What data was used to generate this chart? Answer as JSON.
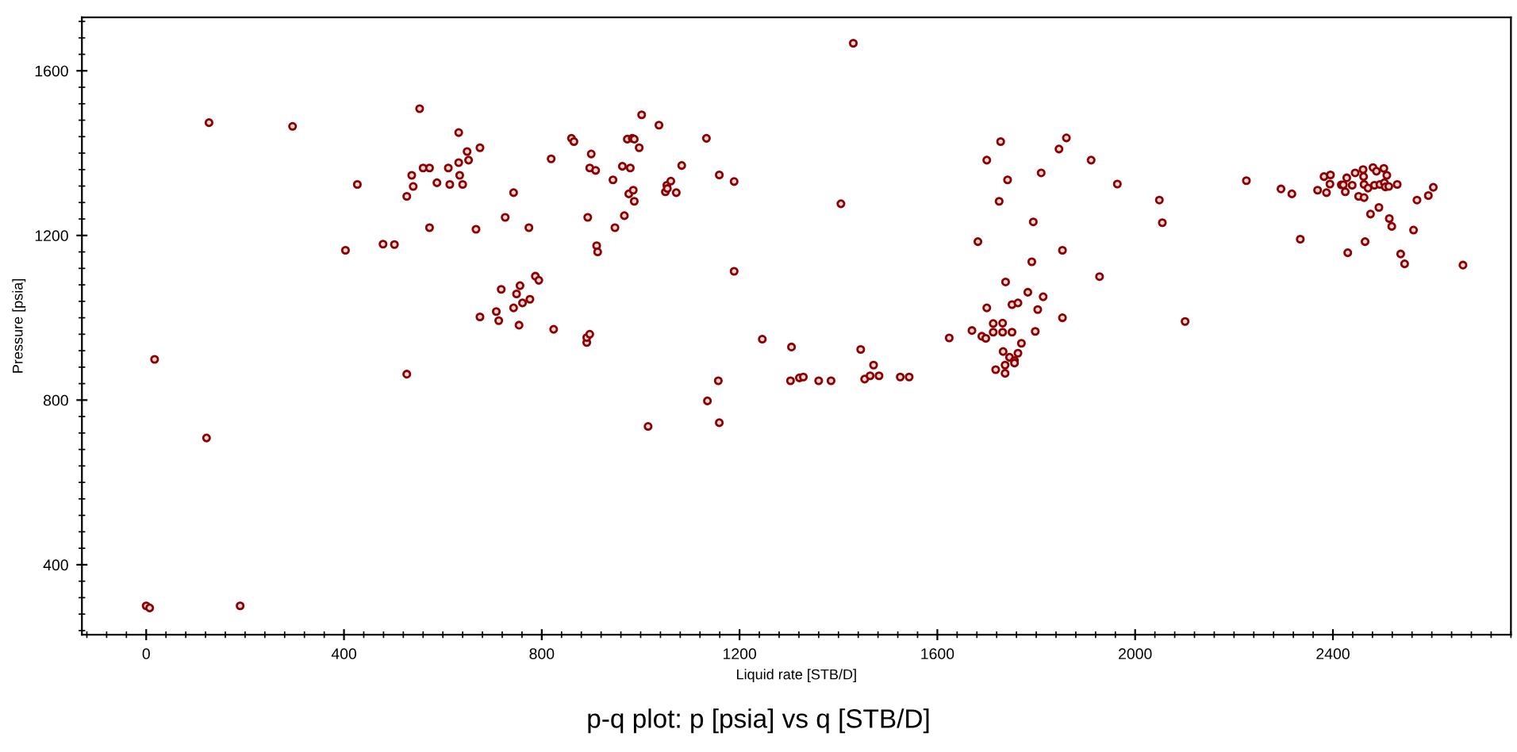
{
  "chart_data": {
    "type": "scatter",
    "title": "p-q plot: p [psia] vs q [STB/D]",
    "xlabel": "Liquid rate [STB/D]",
    "ylabel": "Pressure [psia]",
    "xlim": [
      -130,
      2760
    ],
    "ylim": [
      230,
      1730
    ],
    "xticks": [
      0,
      400,
      800,
      1200,
      1600,
      2000,
      2400
    ],
    "yticks": [
      400,
      800,
      1200,
      1600
    ],
    "marker": "circle",
    "grid": false,
    "series": [
      {
        "color": "#8b0000",
        "x": [
          0,
          7,
          190,
          17,
          122,
          127,
          296,
          403,
          427,
          479,
          502,
          527,
          527,
          537,
          540,
          553,
          560,
          573,
          573,
          588,
          611,
          614,
          632,
          632,
          634,
          640,
          649,
          652,
          667,
          675,
          675,
          708,
          713,
          718,
          726,
          743,
          743,
          749,
          754,
          756,
          761,
          774,
          776,
          787,
          794,
          819,
          824,
          860,
          865,
          893,
          891,
          891,
          897,
          900,
          897,
          909,
          911,
          913,
          944,
          948,
          963,
          967,
          973,
          976,
          979,
          983,
          985,
          987,
          987,
          997,
          1002,
          1015,
          1037,
          1050,
          1053,
          1054,
          1061,
          1072,
          1083,
          1133,
          1135,
          1157,
          1159,
          1159,
          1189,
          1189,
          1246,
          1305,
          1303,
          1321,
          1329,
          1360,
          1385,
          1405,
          1430,
          1445,
          1453,
          1464,
          1471,
          1482,
          1525,
          1543,
          1624,
          1670,
          1682,
          1690,
          1698,
          1700,
          1700,
          1713,
          1713,
          1718,
          1725,
          1728,
          1732,
          1732,
          1733,
          1737,
          1737,
          1738,
          1742,
          1746,
          1751,
          1751,
          1756,
          1756,
          1763,
          1763,
          1770,
          1783,
          1791,
          1794,
          1798,
          1803,
          1810,
          1814,
          1846,
          1853,
          1853,
          1861,
          1911,
          1928,
          1964,
          2049,
          2055,
          2101,
          2225,
          2295,
          2317,
          2334,
          2369,
          2382,
          2387,
          2394,
          2395,
          2417,
          2421,
          2425,
          2428,
          2430,
          2439,
          2445,
          2452,
          2461,
          2462,
          2463,
          2463,
          2465,
          2471,
          2476,
          2481,
          2484,
          2488,
          2493,
          2495,
          2503,
          2504,
          2506,
          2509,
          2513,
          2514,
          2519,
          2530,
          2537,
          2545,
          2563,
          2570,
          2593,
          2603,
          2663
        ],
        "values": [
          300,
          295,
          300,
          899,
          708,
          1474,
          1465,
          1164,
          1324,
          1179,
          1178,
          1295,
          863,
          1346,
          1319,
          1508,
          1364,
          1364,
          1219,
          1328,
          1364,
          1324,
          1450,
          1377,
          1346,
          1324,
          1404,
          1383,
          1215,
          1413,
          1002,
          1015,
          993,
          1069,
          1244,
          1304,
          1024,
          1058,
          982,
          1078,
          1036,
          1219,
          1045,
          1101,
          1091,
          1386,
          972,
          1436,
          1428,
          1244,
          940,
          952,
          960,
          1398,
          1364,
          1358,
          1175,
          1160,
          1335,
          1219,
          1368,
          1248,
          1434,
          1301,
          1364,
          1436,
          1310,
          1283,
          1434,
          1413,
          1493,
          736,
          1468,
          1306,
          1322,
          1314,
          1332,
          1304,
          1370,
          1436,
          798,
          847,
          1347,
          745,
          1331,
          1113,
          948,
          929,
          847,
          854,
          856,
          847,
          847,
          1277,
          1667,
          923,
          851,
          859,
          885,
          859,
          856,
          856,
          951,
          969,
          1185,
          955,
          950,
          1024,
          1383,
          986,
          965,
          874,
          1283,
          1428,
          987,
          965,
          918,
          885,
          865,
          1087,
          1335,
          904,
          965,
          1032,
          896,
          890,
          1036,
          914,
          938,
          1062,
          1136,
          1233,
          967,
          1020,
          1352,
          1051,
          1410,
          1164,
          1000,
          1437,
          1383,
          1100,
          1325,
          1286,
          1231,
          991,
          1333,
          1313,
          1301,
          1191,
          1310,
          1343,
          1304,
          1325,
          1347,
          1323,
          1323,
          1306,
          1340,
          1158,
          1322,
          1352,
          1295,
          1360,
          1343,
          1324,
          1292,
          1185,
          1315,
          1252,
          1365,
          1322,
          1356,
          1268,
          1324,
          1363,
          1328,
          1318,
          1346,
          1319,
          1241,
          1222,
          1324,
          1155,
          1131,
          1213,
          1286,
          1297,
          1317,
          1128
        ]
      }
    ]
  }
}
